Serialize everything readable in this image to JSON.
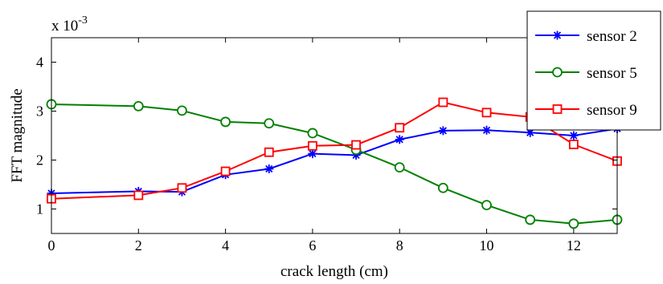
{
  "chart_data": {
    "type": "line",
    "xlabel": "crack length (cm)",
    "ylabel": "FFT magnitude",
    "y_scale_label": "x 10",
    "y_scale_exponent": "-3",
    "xlim": [
      0,
      13
    ],
    "ylim": [
      0.5,
      4.5
    ],
    "xticks": [
      0,
      2,
      4,
      6,
      8,
      10,
      12
    ],
    "yticks": [
      1,
      2,
      3,
      4
    ],
    "grid": false,
    "legend_position": "top-right",
    "x": [
      0,
      2,
      3,
      4,
      5,
      6,
      7,
      8,
      9,
      10,
      11,
      12,
      13
    ],
    "series": [
      {
        "name": "sensor 2",
        "color": "#0000ff",
        "marker": "asterisk",
        "values": [
          1.32,
          1.36,
          1.35,
          1.7,
          1.82,
          2.13,
          2.1,
          2.42,
          2.6,
          2.61,
          2.56,
          2.5,
          2.64
        ]
      },
      {
        "name": "sensor 5",
        "color": "#008000",
        "marker": "circle",
        "values": [
          3.14,
          3.1,
          3.01,
          2.78,
          2.75,
          2.55,
          2.21,
          1.85,
          1.43,
          1.08,
          0.78,
          0.7,
          0.78
        ]
      },
      {
        "name": "sensor 9",
        "color": "#ff0000",
        "marker": "square",
        "values": [
          1.21,
          1.28,
          1.43,
          1.77,
          2.16,
          2.29,
          2.31,
          2.66,
          3.18,
          2.97,
          2.88,
          2.32,
          1.98
        ]
      }
    ]
  }
}
